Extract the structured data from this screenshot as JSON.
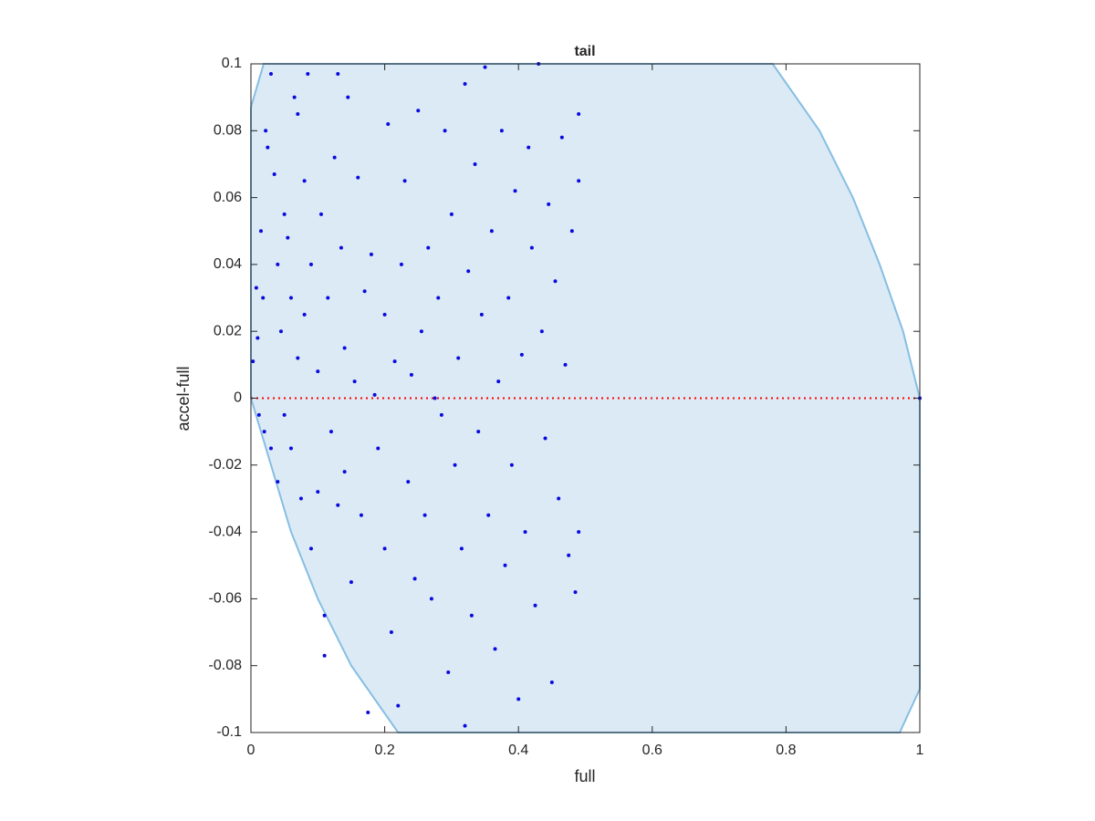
{
  "chart_data": {
    "type": "scatter",
    "title": "tail",
    "x_label": "full",
    "y_label": "accel-full",
    "xlim": [
      0,
      1
    ],
    "ylim": [
      -0.1,
      0.1
    ],
    "xticks": [
      0,
      0.2,
      0.4,
      0.6,
      0.8,
      1
    ],
    "yticks": [
      -0.1,
      -0.08,
      -0.06,
      -0.04,
      -0.02,
      0,
      0.02,
      0.04,
      0.06,
      0.08,
      0.1
    ],
    "grid": false,
    "region": {
      "color": "#dbeaf5",
      "edge_color": "#86bee3",
      "x": [
        0.019,
        0.78,
        0.85,
        0.9,
        0.94,
        0.975,
        1,
        1,
        0.97,
        0.22,
        0.15,
        0.1,
        0.06,
        0.03,
        0,
        0
      ],
      "y": [
        0.1,
        0.1,
        0.08,
        0.06,
        0.04,
        0.02,
        0,
        -0.087,
        -0.1,
        -0.1,
        -0.08,
        -0.06,
        -0.04,
        -0.02,
        0,
        0.087
      ]
    },
    "reference_line": {
      "y": 0,
      "color": "#ff0000"
    },
    "series": [
      {
        "color": "#0a0adf",
        "x": [
          0.003,
          0.008,
          0.01,
          0.012,
          0.015,
          0.018,
          0.02,
          0.022,
          0.025,
          0.03,
          0.03,
          0.035,
          0.04,
          0.04,
          0.045,
          0.05,
          0.05,
          0.055,
          0.06,
          0.06,
          0.065,
          0.07,
          0.07,
          0.075,
          0.08,
          0.08,
          0.085,
          0.09,
          0.09,
          0.1,
          0.1,
          0.105,
          0.11,
          0.11,
          0.115,
          0.12,
          0.125,
          0.13,
          0.13,
          0.135,
          0.14,
          0.14,
          0.145,
          0.15,
          0.155,
          0.16,
          0.165,
          0.17,
          0.175,
          0.18,
          0.185,
          0.19,
          0.2,
          0.2,
          0.205,
          0.21,
          0.215,
          0.22,
          0.225,
          0.23,
          0.235,
          0.24,
          0.245,
          0.25,
          0.255,
          0.26,
          0.265,
          0.27,
          0.275,
          0.28,
          0.285,
          0.29,
          0.295,
          0.3,
          0.305,
          0.31,
          0.315,
          0.32,
          0.32,
          0.325,
          0.33,
          0.335,
          0.34,
          0.345,
          0.35,
          0.355,
          0.36,
          0.365,
          0.37,
          0.375,
          0.38,
          0.385,
          0.39,
          0.395,
          0.4,
          0.405,
          0.41,
          0.415,
          0.42,
          0.425,
          0.43,
          0.435,
          0.44,
          0.445,
          0.45,
          0.455,
          0.46,
          0.465,
          0.47,
          0.475,
          0.48,
          0.485,
          0.49,
          0.49,
          0.49,
          1
        ],
        "y": [
          0.011,
          0.033,
          0.018,
          -0.005,
          0.05,
          0.03,
          -0.01,
          0.08,
          0.075,
          0.097,
          -0.015,
          0.067,
          0.04,
          -0.025,
          0.02,
          0.055,
          -0.005,
          0.048,
          0.03,
          -0.015,
          0.09,
          0.085,
          0.012,
          -0.03,
          0.065,
          0.025,
          0.097,
          0.04,
          -0.045,
          0.008,
          -0.028,
          0.055,
          -0.065,
          -0.077,
          0.03,
          -0.01,
          0.072,
          0.097,
          -0.032,
          0.045,
          0.015,
          -0.022,
          0.09,
          -0.055,
          0.005,
          0.066,
          -0.035,
          0.032,
          -0.094,
          0.043,
          0.001,
          -0.015,
          0.025,
          -0.045,
          0.082,
          -0.07,
          0.011,
          -0.092,
          0.04,
          0.065,
          -0.025,
          0.007,
          -0.054,
          0.086,
          0.02,
          -0.035,
          0.045,
          -0.06,
          0,
          0.03,
          -0.005,
          0.08,
          -0.082,
          0.055,
          -0.02,
          0.012,
          -0.045,
          0.094,
          -0.098,
          0.038,
          -0.065,
          0.07,
          -0.01,
          0.025,
          0.099,
          -0.035,
          0.05,
          -0.075,
          0.005,
          0.08,
          -0.05,
          0.03,
          -0.02,
          0.062,
          -0.09,
          0.013,
          -0.04,
          0.075,
          0.045,
          -0.062,
          0.1,
          0.02,
          -0.012,
          0.058,
          -0.085,
          0.035,
          -0.03,
          0.078,
          0.01,
          -0.047,
          0.05,
          -0.058,
          0.065,
          -0.04,
          0.085,
          0
        ]
      }
    ]
  }
}
